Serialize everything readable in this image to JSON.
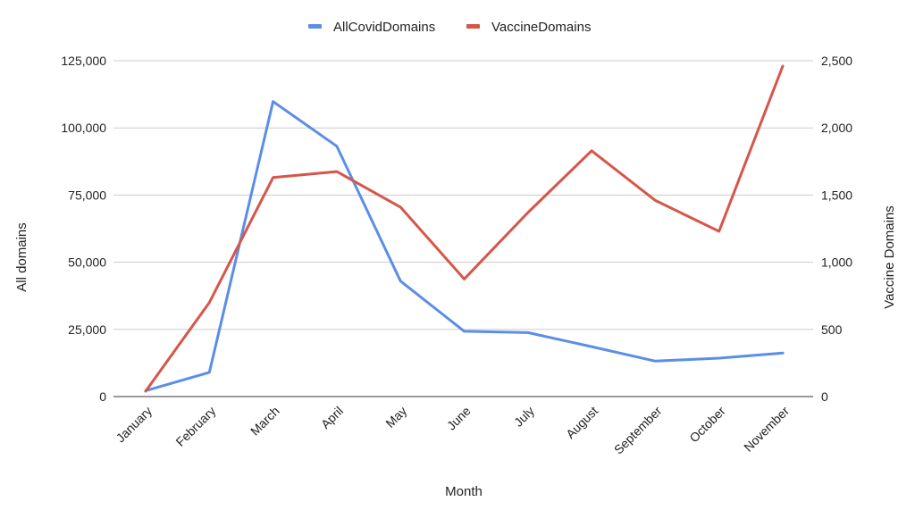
{
  "chart_data": {
    "type": "line",
    "categories": [
      "January",
      "February",
      "March",
      "April",
      "May",
      "June",
      "July",
      "August",
      "September",
      "October",
      "November"
    ],
    "xlabel": "Month",
    "ylabel_left": "All domains",
    "ylabel_right": "Vaccine Domains",
    "ylim_left": [
      0,
      125000
    ],
    "ylim_right": [
      0,
      2500
    ],
    "yticks_left": [
      "0",
      "25,000",
      "50,000",
      "75,000",
      "100,000",
      "125,000"
    ],
    "yticks_right": [
      "0",
      "500",
      "1,000",
      "1,500",
      "2,000",
      "2,500"
    ],
    "grid": true,
    "legend_position": "top-center",
    "series": [
      {
        "name": "AllCovidDomains",
        "axis": "left",
        "color": "#5b8ee6",
        "values": [
          2200,
          9000,
          109800,
          93200,
          43000,
          24300,
          23800,
          18600,
          13200,
          14300,
          16200
        ]
      },
      {
        "name": "VaccineDomains",
        "axis": "right",
        "color": "#d6564a",
        "values": [
          40,
          700,
          1630,
          1675,
          1410,
          875,
          1370,
          1830,
          1460,
          1230,
          2460
        ]
      }
    ]
  }
}
